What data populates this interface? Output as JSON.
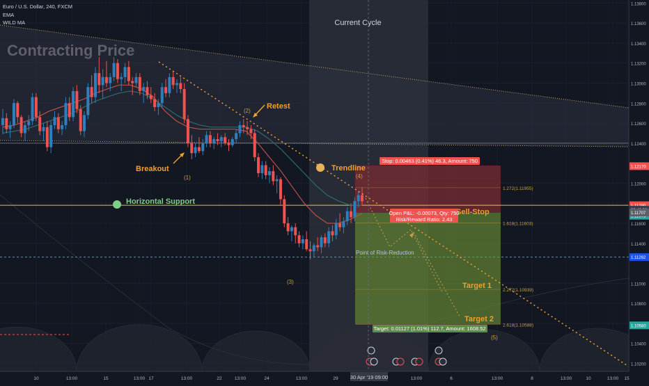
{
  "header": {
    "symbol_line": "Euro / U.S. Dollar, 240, FXCM",
    "indicator_1": "EMA",
    "indicator_2": "WILD MA"
  },
  "chart_data": {
    "type": "candlestick",
    "symbol": "EURUSD",
    "timeframe": "240",
    "ylim": [
      1.1012,
      1.1383
    ],
    "price_ticks": [
      "1.13800",
      "1.13600",
      "1.13400",
      "1.13200",
      "1.13000",
      "1.12800",
      "1.12600",
      "1.12400",
      "1.12000",
      "1.11800",
      "1.11600",
      "1.11400",
      "1.11000",
      "1.10800",
      "1.10600",
      "1.10400",
      "1.10200"
    ],
    "x_ticks": [
      "10",
      "13:00",
      "15",
      "13:00",
      "17",
      "13:00",
      "22",
      "13:00",
      "24",
      "13:00",
      "29",
      "1 May",
      "13:00",
      "6",
      "13:00",
      "8",
      "13:00",
      "10",
      "13:00",
      "15"
    ],
    "candles": [
      [
        1.1258,
        1.1274,
        1.1249,
        1.1265
      ],
      [
        1.1265,
        1.127,
        1.125,
        1.1254
      ],
      [
        1.1254,
        1.1262,
        1.1245,
        1.1258
      ],
      [
        1.1258,
        1.1284,
        1.1255,
        1.128
      ],
      [
        1.128,
        1.1282,
        1.126,
        1.1266
      ],
      [
        1.1266,
        1.1268,
        1.1246,
        1.125
      ],
      [
        1.125,
        1.1262,
        1.1242,
        1.1258
      ],
      [
        1.1258,
        1.1268,
        1.1252,
        1.1262
      ],
      [
        1.1262,
        1.129,
        1.1258,
        1.1286
      ],
      [
        1.1286,
        1.129,
        1.1262,
        1.1266
      ],
      [
        1.1266,
        1.1272,
        1.1248,
        1.1252
      ],
      [
        1.1252,
        1.126,
        1.1242,
        1.1256
      ],
      [
        1.1256,
        1.1262,
        1.1232,
        1.1236
      ],
      [
        1.1236,
        1.1262,
        1.123,
        1.1258
      ],
      [
        1.1258,
        1.1272,
        1.1254,
        1.1266
      ],
      [
        1.1266,
        1.127,
        1.125,
        1.1254
      ],
      [
        1.1254,
        1.1262,
        1.1248,
        1.1258
      ],
      [
        1.1258,
        1.1286,
        1.1254,
        1.128
      ],
      [
        1.128,
        1.1286,
        1.1262,
        1.1266
      ],
      [
        1.1266,
        1.1296,
        1.1262,
        1.1292
      ],
      [
        1.1292,
        1.1298,
        1.127,
        1.1274
      ],
      [
        1.1274,
        1.1278,
        1.1248,
        1.1252
      ],
      [
        1.1252,
        1.1272,
        1.1246,
        1.1268
      ],
      [
        1.1268,
        1.13,
        1.1264,
        1.1296
      ],
      [
        1.1296,
        1.1308,
        1.128,
        1.1286
      ],
      [
        1.1286,
        1.1316,
        1.128,
        1.131
      ],
      [
        1.131,
        1.1326,
        1.129,
        1.1298
      ],
      [
        1.1298,
        1.1314,
        1.1284,
        1.1306
      ],
      [
        1.1306,
        1.1322,
        1.1296,
        1.13
      ],
      [
        1.13,
        1.131,
        1.1292,
        1.1306
      ],
      [
        1.1306,
        1.1326,
        1.1302,
        1.132
      ],
      [
        1.132,
        1.1324,
        1.13,
        1.1304
      ],
      [
        1.1304,
        1.131,
        1.1292,
        1.1306
      ],
      [
        1.1306,
        1.132,
        1.13,
        1.1316
      ],
      [
        1.1316,
        1.1322,
        1.1298,
        1.1302
      ],
      [
        1.1302,
        1.1306,
        1.1288,
        1.13
      ],
      [
        1.13,
        1.131,
        1.1296,
        1.1306
      ],
      [
        1.1306,
        1.131,
        1.1288,
        1.1292
      ],
      [
        1.1292,
        1.13,
        1.128,
        1.1296
      ],
      [
        1.1296,
        1.1302,
        1.1284,
        1.1288
      ],
      [
        1.1288,
        1.1296,
        1.128,
        1.1284
      ],
      [
        1.1284,
        1.129,
        1.1272,
        1.1276
      ],
      [
        1.1276,
        1.1284,
        1.1268,
        1.128
      ],
      [
        1.128,
        1.13,
        1.1276,
        1.1296
      ],
      [
        1.1296,
        1.1304,
        1.1286,
        1.129
      ],
      [
        1.129,
        1.131,
        1.1286,
        1.1306
      ],
      [
        1.1306,
        1.1312,
        1.1294,
        1.1298
      ],
      [
        1.1298,
        1.1304,
        1.129,
        1.13
      ],
      [
        1.13,
        1.1306,
        1.129,
        1.1294
      ],
      [
        1.1294,
        1.13,
        1.126,
        1.1264
      ],
      [
        1.1264,
        1.1268,
        1.1236,
        1.124
      ],
      [
        1.124,
        1.1248,
        1.1224,
        1.123
      ],
      [
        1.123,
        1.124,
        1.1226,
        1.1236
      ],
      [
        1.1236,
        1.1246,
        1.123,
        1.1232
      ],
      [
        1.1232,
        1.1244,
        1.1228,
        1.124
      ],
      [
        1.124,
        1.1252,
        1.1236,
        1.1248
      ],
      [
        1.1248,
        1.1252,
        1.1236,
        1.124
      ],
      [
        1.124,
        1.1246,
        1.1234,
        1.1244
      ],
      [
        1.1244,
        1.125,
        1.1238,
        1.1242
      ],
      [
        1.1242,
        1.1248,
        1.1236,
        1.1246
      ],
      [
        1.1246,
        1.125,
        1.1238,
        1.124
      ],
      [
        1.124,
        1.1244,
        1.1232,
        1.1238
      ],
      [
        1.1238,
        1.1246,
        1.1236,
        1.1244
      ],
      [
        1.1244,
        1.1254,
        1.124,
        1.125
      ],
      [
        1.125,
        1.1262,
        1.1246,
        1.1258
      ],
      [
        1.1258,
        1.1264,
        1.125,
        1.1256
      ],
      [
        1.1256,
        1.1262,
        1.1248,
        1.1254
      ],
      [
        1.1254,
        1.1258,
        1.1244,
        1.125
      ],
      [
        1.125,
        1.1254,
        1.1222,
        1.1226
      ],
      [
        1.1226,
        1.123,
        1.1206,
        1.121
      ],
      [
        1.121,
        1.1222,
        1.1204,
        1.1218
      ],
      [
        1.1218,
        1.1222,
        1.1204,
        1.1208
      ],
      [
        1.1208,
        1.1216,
        1.12,
        1.1212
      ],
      [
        1.1212,
        1.1218,
        1.1198,
        1.1202
      ],
      [
        1.1202,
        1.1208,
        1.119,
        1.1204
      ],
      [
        1.1204,
        1.1206,
        1.1178,
        1.1184
      ],
      [
        1.1184,
        1.1188,
        1.1156,
        1.116
      ],
      [
        1.116,
        1.1166,
        1.1148,
        1.1152
      ],
      [
        1.1152,
        1.1158,
        1.1142,
        1.1156
      ],
      [
        1.1156,
        1.116,
        1.114,
        1.1148
      ],
      [
        1.1148,
        1.1152,
        1.1136,
        1.114
      ],
      [
        1.114,
        1.1148,
        1.1134,
        1.1144
      ],
      [
        1.1144,
        1.1152,
        1.1132,
        1.1134
      ],
      [
        1.1134,
        1.1142,
        1.1124,
        1.1132
      ],
      [
        1.1132,
        1.114,
        1.1126,
        1.1138
      ],
      [
        1.1138,
        1.1146,
        1.1132,
        1.1136
      ],
      [
        1.1136,
        1.1148,
        1.113,
        1.1146
      ],
      [
        1.1146,
        1.115,
        1.1136,
        1.114
      ],
      [
        1.114,
        1.1156,
        1.1136,
        1.1152
      ],
      [
        1.1152,
        1.1158,
        1.1142,
        1.1148
      ],
      [
        1.1148,
        1.1164,
        1.1144,
        1.116
      ],
      [
        1.116,
        1.117,
        1.1152,
        1.1156
      ],
      [
        1.1156,
        1.1166,
        1.115,
        1.1162
      ],
      [
        1.1162,
        1.1176,
        1.1158,
        1.1172
      ],
      [
        1.1172,
        1.118,
        1.116,
        1.1166
      ],
      [
        1.1166,
        1.1186,
        1.1162,
        1.1182
      ],
      [
        1.1182,
        1.1192,
        1.1176,
        1.1188
      ],
      [
        1.1188,
        1.1196,
        1.1178,
        1.1182
      ]
    ],
    "ema_values": [
      1.1256,
      1.1258,
      1.1262,
      1.1266,
      1.1272,
      1.1276,
      1.128,
      1.1284,
      1.129,
      1.1294,
      1.1298,
      1.1298,
      1.1294,
      1.1286,
      1.1272,
      1.1262,
      1.1256,
      1.1254,
      1.1254,
      1.1254,
      1.1254,
      1.1252,
      1.124,
      1.1226,
      1.1212,
      1.1196,
      1.118,
      1.1168,
      1.116,
      1.116,
      1.1164,
      1.117
    ],
    "wild_ma_values": [
      1.125,
      1.1252,
      1.1254,
      1.1258,
      1.1262,
      1.1266,
      1.127,
      1.1276,
      1.1282,
      1.1286,
      1.129,
      1.1292,
      1.129,
      1.1284,
      1.1276,
      1.1268,
      1.1262,
      1.1258,
      1.1256,
      1.1256,
      1.1256,
      1.1256,
      1.1252,
      1.1244,
      1.1234,
      1.1222,
      1.121,
      1.1198,
      1.1188,
      1.1182,
      1.1178,
      1.1178
    ],
    "levels": {
      "horizontal_support": 1.1178,
      "upper_support": 1.124,
      "risk_reduction": 1.11262,
      "stop_top": 1.1217,
      "entry": 1.11707,
      "target": 1.1058
    },
    "price_labels": [
      {
        "text": "1.12170",
        "price": 1.1217,
        "color": "#ef5350"
      },
      {
        "text": "1.11780",
        "price": 1.1178,
        "color": "#ef5350"
      },
      {
        "text": "1.11675",
        "price": 1.11675,
        "color": "#26a69a"
      },
      {
        "text": "02:43:08",
        "price": 1.11735,
        "color": "#3a3f4d"
      },
      {
        "text": "1.11707",
        "price": 1.11707,
        "color": "#5d606b"
      },
      {
        "text": "1.11262",
        "price": 1.11262,
        "color": "#1e53e5"
      },
      {
        "text": "1.10580",
        "price": 1.1058,
        "color": "#26a69a"
      }
    ],
    "annotations": {
      "title": "Contracting Price",
      "current_cycle": "Current Cycle",
      "retest": "Retest",
      "breakout": "Breakout",
      "trendline": "Trendline",
      "horizontal_support": "Horizontal Support",
      "point_of_risk_reduction": "Point of Risk-Reduction",
      "sell_stop": "Sell-Stop",
      "target_1": "Target 1",
      "target_2": "Target 2",
      "wave_1": "(1)",
      "wave_2": "(2)",
      "wave_3": "(3)",
      "wave_4": "(4)",
      "wave_5": "(5)"
    },
    "fib_levels": [
      {
        "text": "1.272(1.11955)",
        "price": 1.11955
      },
      {
        "text": "1.618(1.11603)",
        "price": 1.11603
      },
      {
        "text": "2.272(1.10939)",
        "price": 1.10939
      },
      {
        "text": "2.618(1.10588)",
        "price": 1.10588
      }
    ],
    "position": {
      "stop_label": "Stop: 0.00463 (0.41%) 46.3, Amount: 750",
      "open_pnl": "Open P&L: -0.00073, Qty: 750",
      "risk_reward": "Risk/Reward Ratio: 2.43",
      "target_label": "Target: 0.01127 (1.01%) 112.7, Amount: 1608.52"
    },
    "date_badge": "30 Apr '19   09:00",
    "event_icons": [
      "earnings",
      "dividend",
      "split"
    ]
  }
}
